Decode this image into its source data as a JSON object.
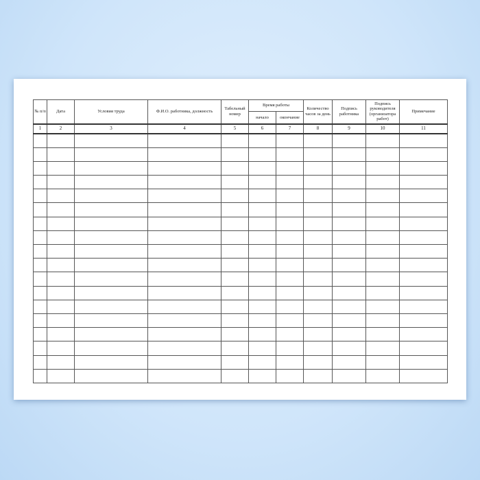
{
  "table": {
    "headers": {
      "c1": "№ п/п",
      "c2": "Дата",
      "c3": "Условия труда",
      "c4": "Ф.И.О. работника, должность",
      "c5": "Табельный номер",
      "c6_7": "Время работы",
      "c6": "начало",
      "c7": "окончание",
      "c8": "Количество часов за день",
      "c9": "Подпись работника",
      "c10": "Подпись руководителя (организатора работ)",
      "c11": "Примечание"
    },
    "numbers": [
      "1",
      "2",
      "3",
      "4",
      "5",
      "6",
      "7",
      "8",
      "9",
      "10",
      "11"
    ],
    "empty_rows": 18
  }
}
